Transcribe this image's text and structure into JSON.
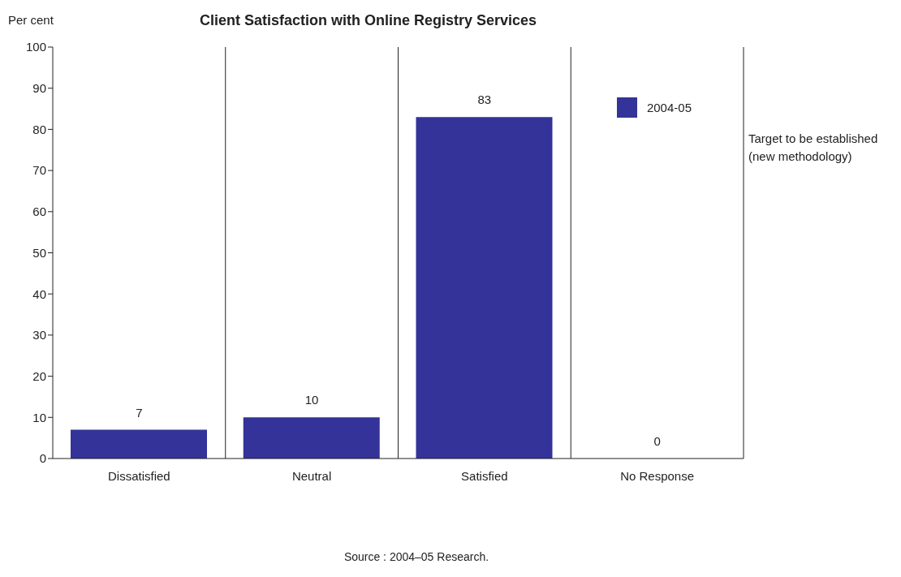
{
  "chart_data": {
    "type": "bar",
    "title": "Client Satisfaction with Online Registry Services",
    "ylabel": "Per cent",
    "categories": [
      "Dissatisfied",
      "Neutral",
      "Satisfied",
      "No Response"
    ],
    "series": [
      {
        "name": "2004-05",
        "color": "#333399",
        "values": [
          7,
          10,
          83,
          0
        ]
      }
    ],
    "ylim": [
      0,
      100
    ],
    "yticks": [
      0,
      10,
      20,
      30,
      40,
      50,
      60,
      70,
      80,
      90,
      100
    ],
    "grid": "x",
    "legend": "top right",
    "data_labels": true,
    "annotations": [
      "Target to be established (new methodology)",
      "Source : 2004–05 Research."
    ]
  }
}
